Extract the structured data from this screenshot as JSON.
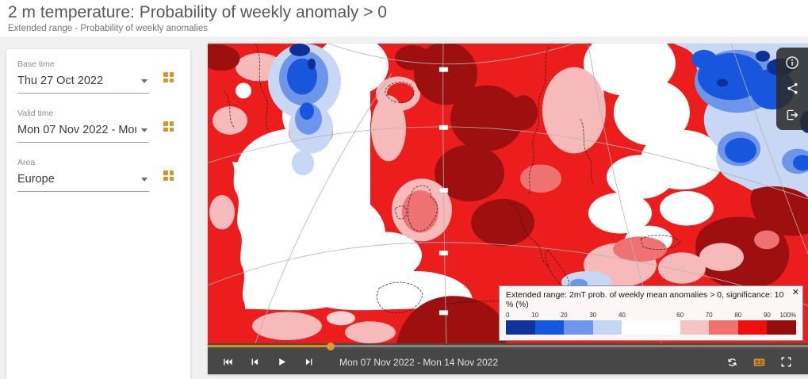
{
  "header": {
    "title": "2 m temperature: Probability of weekly anomaly > 0",
    "subtitle": "Extended range - Probability of weekly anomalies"
  },
  "sidebar": {
    "controls": [
      {
        "label": "Base time",
        "value": "Thu 27 Oct 2022"
      },
      {
        "label": "Valid time",
        "value": "Mon 07 Nov 2022 - Mon 14 ..."
      },
      {
        "label": "Area",
        "value": "Europe"
      }
    ]
  },
  "map": {
    "legend": {
      "title": "Extended range: 2mT prob. of weekly mean anomalies > 0, significance: 10 % (%)",
      "close_label": "✕",
      "ticks": [
        {
          "label": "0",
          "position": 0
        },
        {
          "label": "10",
          "position": 10
        },
        {
          "label": "20",
          "position": 20
        },
        {
          "label": "30",
          "position": 30
        },
        {
          "label": "40",
          "position": 40
        },
        {
          "label": "60",
          "position": 60
        },
        {
          "label": "70",
          "position": 70
        },
        {
          "label": "80",
          "position": 80
        },
        {
          "label": "90",
          "position": 90
        },
        {
          "label": "100%",
          "position": 100
        }
      ],
      "segments": [
        {
          "from": 0,
          "to": 10,
          "color": "#10339b"
        },
        {
          "from": 10,
          "to": 20,
          "color": "#1558e0"
        },
        {
          "from": 20,
          "to": 30,
          "color": "#6f97e9"
        },
        {
          "from": 30,
          "to": 40,
          "color": "#c5d6f4"
        },
        {
          "from": 40,
          "to": 60,
          "color": "#ffffff"
        },
        {
          "from": 60,
          "to": 70,
          "color": "#f7c4c4"
        },
        {
          "from": 70,
          "to": 80,
          "color": "#f0716e"
        },
        {
          "from": 80,
          "to": 90,
          "color": "#ed100d"
        },
        {
          "from": 90,
          "to": 100,
          "color": "#950d0d"
        }
      ]
    },
    "animation": {
      "time_label": "Mon 07 Nov 2022 - Mon 14 Nov 2022",
      "progress_percent": 20.5
    }
  },
  "colors": {
    "accent_orange": "#d9932b",
    "toolbar_bg": "#474747",
    "map_red": "#ec1d1d",
    "map_dark_red": "#9e0f0f"
  }
}
